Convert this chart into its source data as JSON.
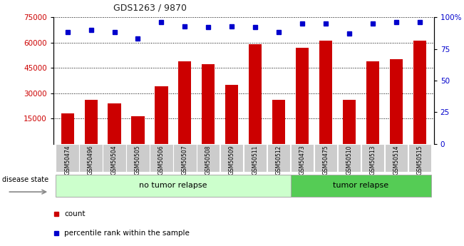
{
  "title": "GDS1263 / 9870",
  "samples": [
    "GSM50474",
    "GSM50496",
    "GSM50504",
    "GSM50505",
    "GSM50506",
    "GSM50507",
    "GSM50508",
    "GSM50509",
    "GSM50511",
    "GSM50512",
    "GSM50473",
    "GSM50475",
    "GSM50510",
    "GSM50513",
    "GSM50514",
    "GSM50515"
  ],
  "counts": [
    18000,
    26000,
    24000,
    16500,
    34000,
    49000,
    47000,
    35000,
    59000,
    26000,
    57000,
    61000,
    26000,
    49000,
    50000,
    61000
  ],
  "percentile": [
    88,
    90,
    88,
    83,
    96,
    93,
    92,
    93,
    92,
    88,
    95,
    95,
    87,
    95,
    96,
    96
  ],
  "group_labels": [
    "no tumor relapse",
    "tumor relapse"
  ],
  "group_sizes": [
    10,
    6
  ],
  "ylim_left": [
    0,
    75000
  ],
  "ylim_right": [
    0,
    100
  ],
  "yticks_left": [
    15000,
    30000,
    45000,
    60000,
    75000
  ],
  "yticks_right": [
    0,
    25,
    50,
    75,
    100
  ],
  "bar_color": "#cc0000",
  "dot_color": "#0000cc",
  "group0_color": "#ccffcc",
  "group1_color": "#55cc55",
  "tick_label_bg": "#cccccc",
  "title_color": "#222222"
}
